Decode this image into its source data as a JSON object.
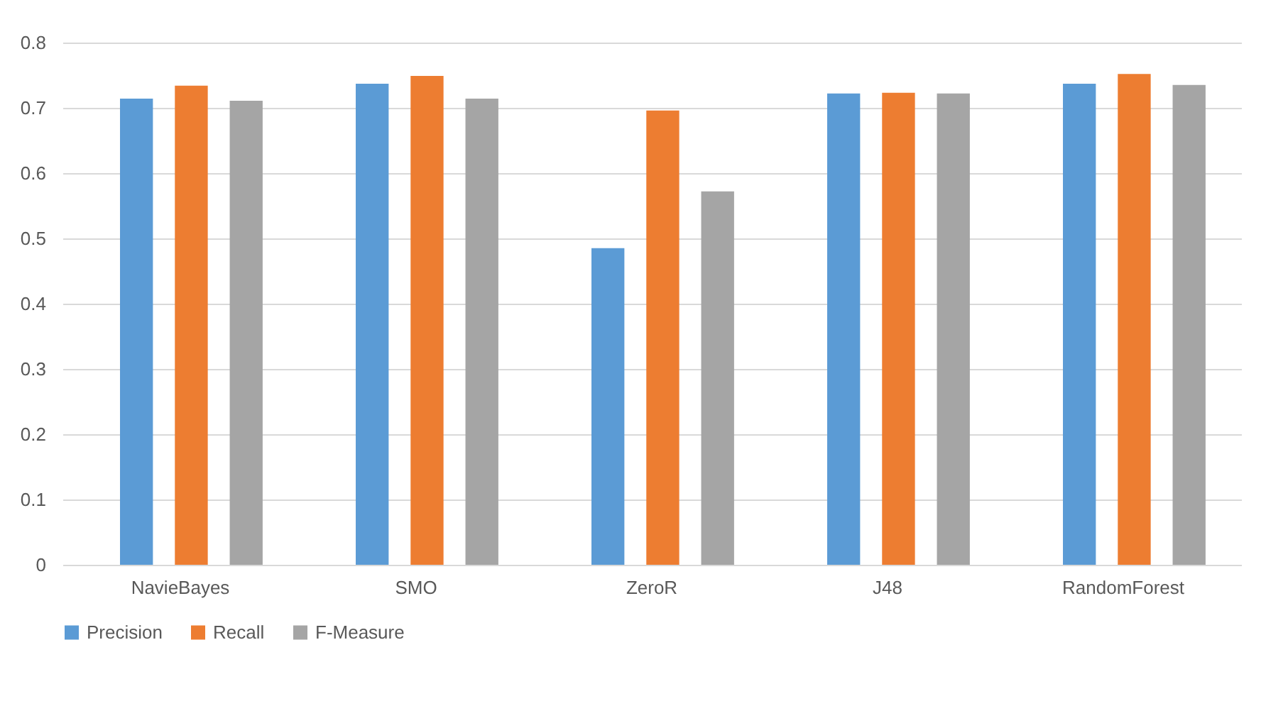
{
  "chart_data": {
    "type": "bar",
    "categories": [
      "NavieBayes",
      "SMO",
      "ZeroR",
      "J48",
      "RandomForest"
    ],
    "series": [
      {
        "name": "Precision",
        "color": "#5b9bd5",
        "values": [
          0.714,
          0.737,
          0.485,
          0.722,
          0.737
        ]
      },
      {
        "name": "Recall",
        "color": "#ed7d31",
        "values": [
          0.734,
          0.749,
          0.696,
          0.723,
          0.752
        ]
      },
      {
        "name": "F-Measure",
        "color": "#a5a5a5",
        "values": [
          0.711,
          0.714,
          0.572,
          0.722,
          0.735
        ]
      }
    ],
    "ylim": [
      0,
      0.8
    ],
    "yticks": [
      0,
      0.1,
      0.2,
      0.3,
      0.4,
      0.5,
      0.6,
      0.7,
      0.8
    ],
    "grid": "y",
    "legend": "bottom"
  }
}
